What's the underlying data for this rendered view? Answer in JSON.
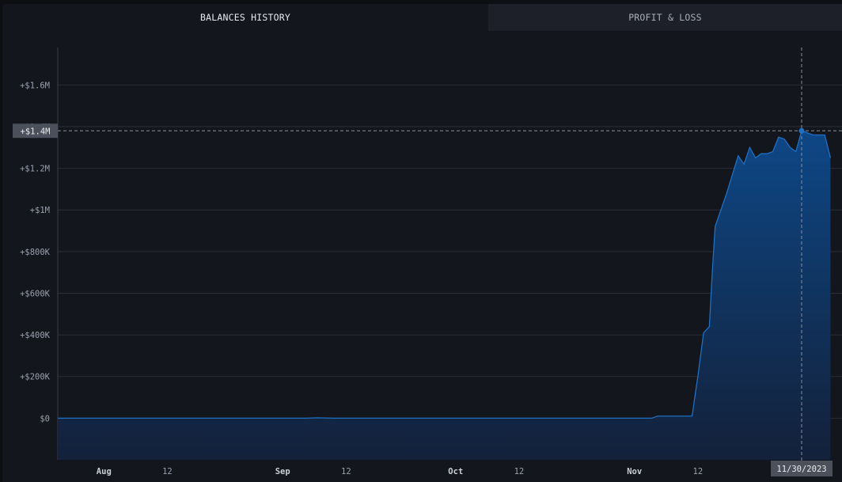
{
  "tabs": [
    {
      "label": "BALANCES HISTORY",
      "active": true
    },
    {
      "label": "PROFIT & LOSS",
      "active": false
    }
  ],
  "colors": {
    "line": "#1f6fc2",
    "fill_top": "#0d4a8c",
    "fill_bottom": "#13223d",
    "grid": "#2a2e38",
    "crosshair": "#8a909c",
    "label_bg": "#4b505a"
  },
  "crosshair": {
    "date": "11/30/2023",
    "value": 1380000,
    "value_label": "+$1.4M",
    "overlapped_tick_label": "+$1.4M"
  },
  "chart_data": {
    "type": "area",
    "title": "",
    "xlabel": "",
    "ylabel": "",
    "ylim": [
      -200000,
      1780000
    ],
    "xlim": [
      "2023-07-24",
      "2023-12-07"
    ],
    "grid": true,
    "yticks": [
      {
        "value": 0,
        "label": "$0"
      },
      {
        "value": 200000,
        "label": "+$200K"
      },
      {
        "value": 400000,
        "label": "+$400K"
      },
      {
        "value": 600000,
        "label": "+$600K"
      },
      {
        "value": 800000,
        "label": "+$800K"
      },
      {
        "value": 1000000,
        "label": "+$1M"
      },
      {
        "value": 1200000,
        "label": "+$1.2M"
      },
      {
        "value": 1600000,
        "label": "+$1.6M"
      }
    ],
    "xticks": [
      {
        "date": "2023-08-01",
        "label": "Aug",
        "major": true
      },
      {
        "date": "2023-08-12",
        "label": "12",
        "major": false
      },
      {
        "date": "2023-09-01",
        "label": "Sep",
        "major": true
      },
      {
        "date": "2023-09-12",
        "label": "12",
        "major": false
      },
      {
        "date": "2023-10-01",
        "label": "Oct",
        "major": true
      },
      {
        "date": "2023-10-12",
        "label": "12",
        "major": false
      },
      {
        "date": "2023-11-01",
        "label": "Nov",
        "major": true
      },
      {
        "date": "2023-11-12",
        "label": "12",
        "major": false
      }
    ],
    "series": [
      {
        "x": [
          "2023-07-24",
          "2023-08-15",
          "2023-09-05",
          "2023-09-07",
          "2023-09-10",
          "2023-10-15",
          "2023-11-04",
          "2023-11-05",
          "2023-11-11",
          "2023-11-12",
          "2023-11-13",
          "2023-11-14",
          "2023-11-14.5",
          "2023-11-15",
          "2023-11-16",
          "2023-11-17",
          "2023-11-19",
          "2023-11-20",
          "2023-11-21",
          "2023-11-22",
          "2023-11-23",
          "2023-11-24",
          "2023-11-25",
          "2023-11-26",
          "2023-11-27",
          "2023-11-28",
          "2023-11-29",
          "2023-11-30",
          "2023-12-01",
          "2023-12-02",
          "2023-12-04",
          "2023-12-05"
        ],
        "y": [
          0,
          0,
          0,
          2000,
          0,
          0,
          0,
          10000,
          10000,
          200000,
          410000,
          440000,
          700000,
          920000,
          1000000,
          1080000,
          1260000,
          1220000,
          1300000,
          1250000,
          1270000,
          1270000,
          1280000,
          1350000,
          1340000,
          1300000,
          1280000,
          1380000,
          1370000,
          1360000,
          1360000,
          1250000
        ]
      }
    ]
  }
}
